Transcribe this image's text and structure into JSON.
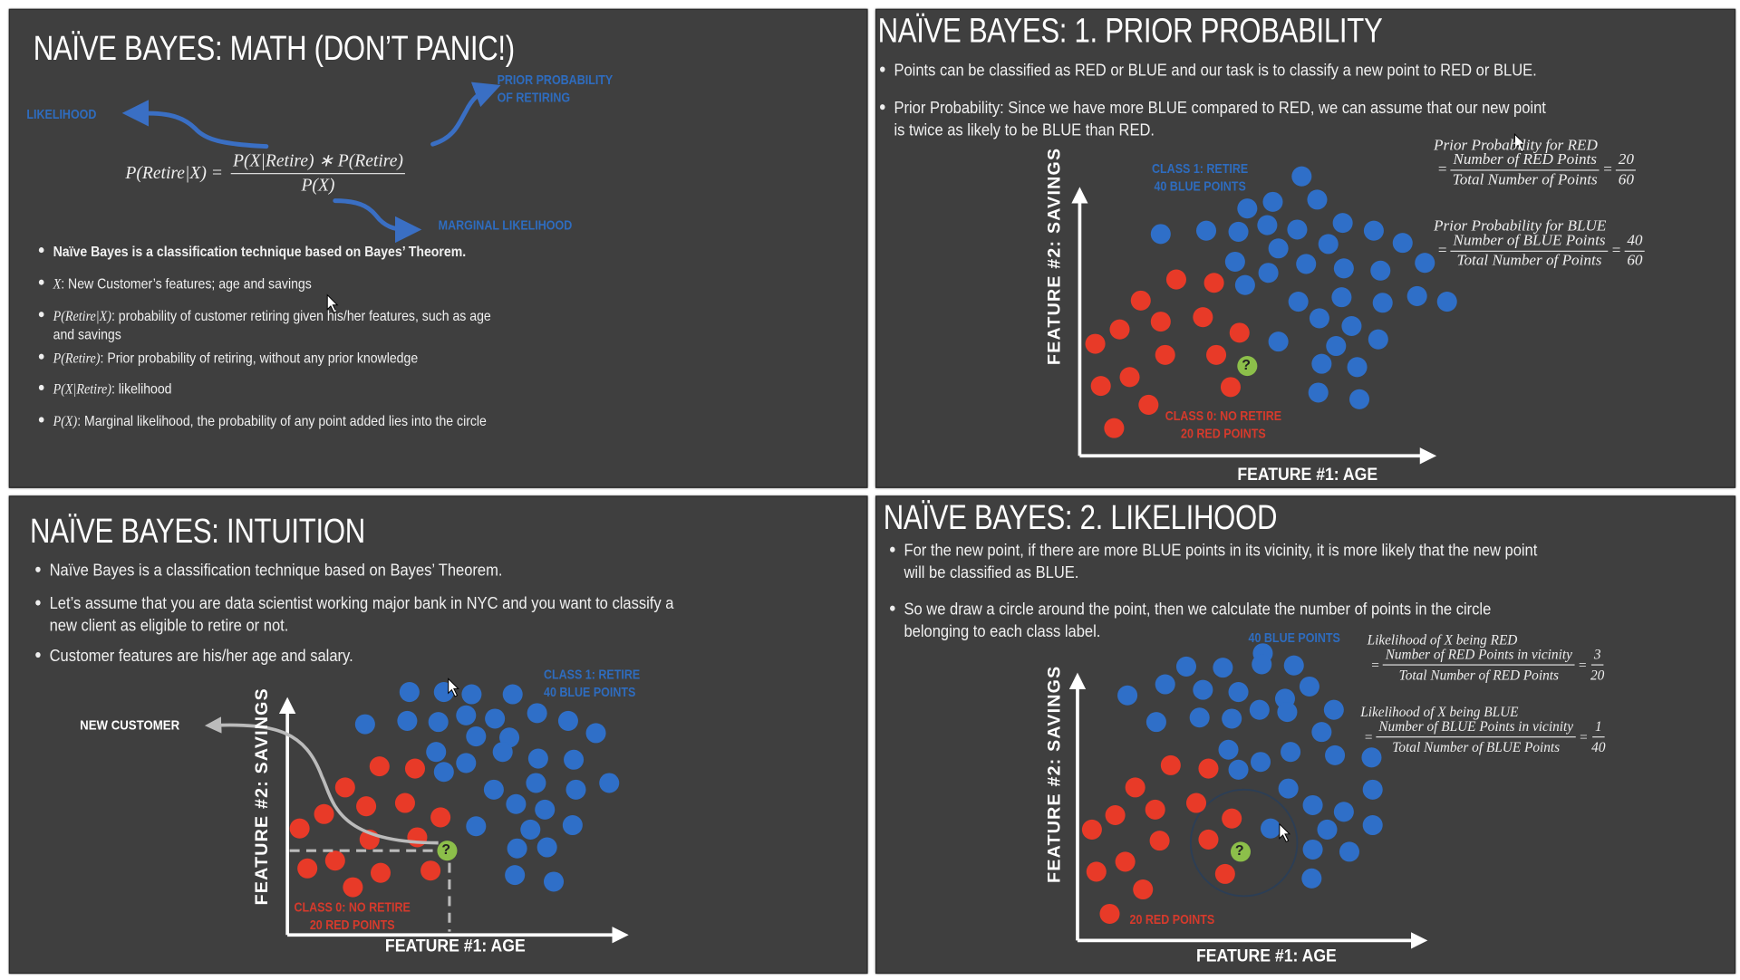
{
  "colors": {
    "red": "#e83a28",
    "blue": "#2f6fc8",
    "green": "#8cbf4a",
    "panel": "#3f3f3f",
    "label_blue": "#2e6cbf",
    "label_red": "#d63a2c"
  },
  "math": {
    "title": "NAÏVE BAYES: MATH (DON’T PANIC!)",
    "likelihood_label": "LIKELIHOOD",
    "prior_label_1": "PRIOR PROBABILITY",
    "prior_label_2": "OF RETIRING",
    "marginal_label": "MARGINAL LIKELIHOOD",
    "formula": {
      "lhs": "P(Retire|X) =",
      "num": "P(X|Retire) ∗ P(Retire)",
      "den": "P(X)"
    },
    "bullets": [
      {
        "math": "",
        "text": "Naïve Bayes is a classification technique based on Bayes’ Theorem."
      },
      {
        "math": "X",
        "text": ": New Customer’s features; age and savings"
      },
      {
        "math": "P(Retire|X)",
        "text": ": probability of customer retiring given his/her features, such as age",
        "text2": "and savings"
      },
      {
        "math": "P(Retire)",
        "text": ": Prior probability of retiring, without any prior knowledge"
      },
      {
        "math": "P(X|Retire)",
        "text": ": likelihood"
      },
      {
        "math": "P(X)",
        "text": ": Marginal likelihood, the probability of any point added lies into the circle"
      }
    ]
  },
  "prior": {
    "title": "NAÏVE BAYES: 1. PRIOR PROBABILITY",
    "bullets": [
      "Points can be classified as RED or BLUE and our task is to classify a new point to RED or BLUE.",
      "Prior Probability: Since we have more BLUE compared to RED, we can assume that our new point",
      "is twice as likely to be BLUE than RED."
    ],
    "class1_1": "CLASS 1: RETIRE",
    "class1_2": "40 BLUE POINTS",
    "class0_1": "CLASS 0: NO RETIRE",
    "class0_2": "20 RED POINTS",
    "x_label": "FEATURE #1: AGE",
    "y_label": "FEATURE #2: SAVINGS",
    "new_point": "?",
    "red_formula": {
      "title": "Prior Probability for RED",
      "eq": "=",
      "num": "Number of RED Points",
      "den": "Total Number of Points",
      "r_num": "20",
      "r_den": "60"
    },
    "blue_formula": {
      "title": "Prior Probability for BLUE",
      "eq": "=",
      "num": "Number of BLUE Points",
      "den": "Total Number of Points",
      "r_num": "40",
      "r_den": "60"
    }
  },
  "intuition": {
    "title": "NAÏVE BAYES: INTUITION",
    "bullets": [
      "Naïve Bayes is a classification technique based on Bayes’ Theorem.",
      "Let’s assume that you are data scientist working major bank in NYC and you want to classify a",
      "new client as eligible to retire or not.",
      "Customer features are his/her age and salary."
    ],
    "new_customer": "NEW CUSTOMER",
    "class1_1": "CLASS 1: RETIRE",
    "class1_2": "40 BLUE POINTS",
    "class0_1": "CLASS 0: NO RETIRE",
    "class0_2": "20 RED POINTS",
    "x_label": "FEATURE #1: AGE",
    "y_label": "FEATURE #2: SAVINGS",
    "new_point": "?"
  },
  "likelihood": {
    "title": "NAÏVE BAYES: 2. LIKELIHOOD",
    "bullets": [
      "For the new point, if there are more BLUE points in its vicinity, it is more likely that the new point",
      "will be classified as BLUE.",
      "So we draw a circle around the point, then we calculate the number of points in the circle",
      "belonging to each class label."
    ],
    "blue_label": "40 BLUE POINTS",
    "red_label": "20 RED POINTS",
    "x_label": "FEATURE #1: AGE",
    "y_label": "FEATURE #2: SAVINGS",
    "new_point": "?",
    "red_formula": {
      "title": "Likelihood of X being RED",
      "eq": "=",
      "num": "Number of RED Points in vicinity",
      "den": "Total Number of RED Points",
      "r_num": "3",
      "r_den": "20"
    },
    "blue_formula": {
      "title": "Likelihood of X being BLUE",
      "eq": "=",
      "num": "Number of BLUE Points in vicinity",
      "den": "Total Number of BLUE Points",
      "r_num": "1",
      "r_den": "40"
    }
  }
}
